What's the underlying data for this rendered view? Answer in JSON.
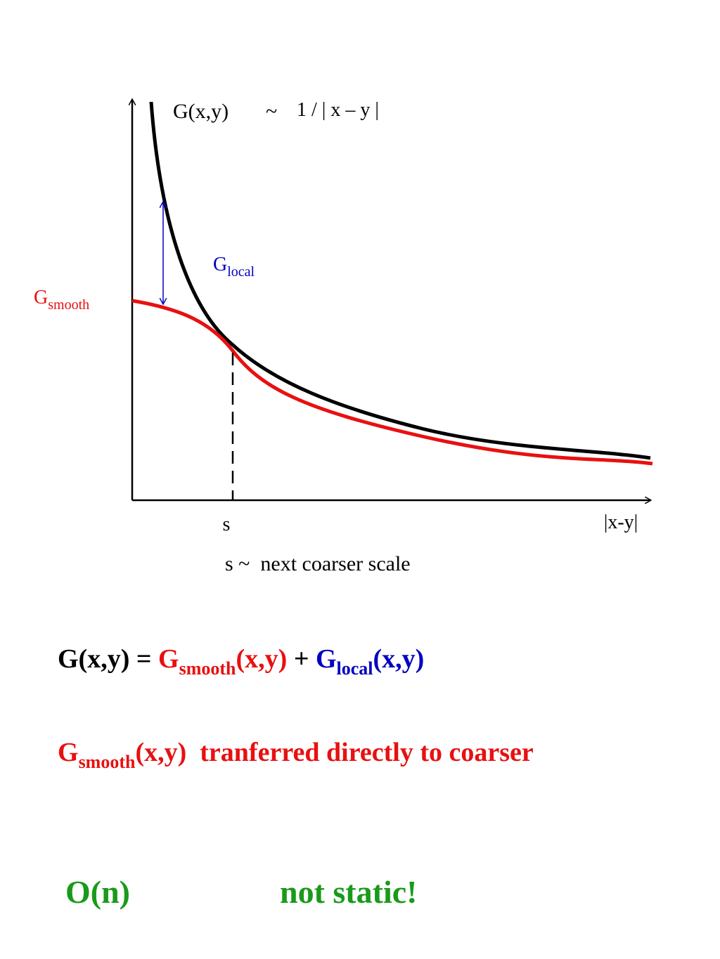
{
  "diagram": {
    "curve_label": {
      "lhs": "G(x,y)",
      "tilde": "~",
      "rhs": "1 / | x – y |"
    },
    "local_label": {
      "base": "G",
      "sub": "local"
    },
    "smooth_label": {
      "base": "G",
      "sub": "smooth"
    },
    "x_tick": "s",
    "x_axis_label": "|x-y|",
    "caption": "s ~  next coarser scale"
  },
  "equation": {
    "lhs": "G(x,y) = ",
    "smooth_base": "G",
    "smooth_sub": "smooth",
    "smooth_args": "(x,y)",
    "plus": " + ",
    "local_base": "G",
    "local_sub": "local",
    "local_args": "(x,y)"
  },
  "transfer": {
    "base": "G",
    "sub": "smooth",
    "args": "(x,y)",
    "text": "  tranferred directly to coarser"
  },
  "complexity": {
    "order": "O(n)",
    "note": "not static!"
  }
}
